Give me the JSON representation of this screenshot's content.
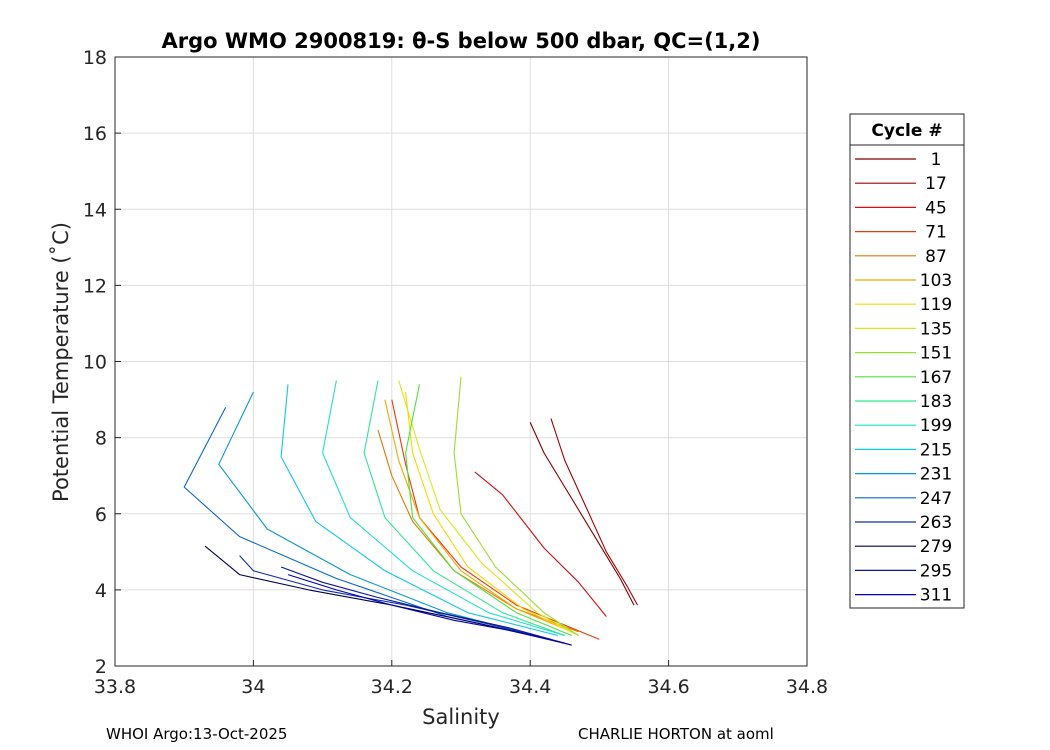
{
  "chart_data": {
    "type": "line",
    "title": "Argo WMO 2900819: θ-S below 500 dbar,  QC=(1,2)",
    "xlabel": "Salinity",
    "ylabel": "Potential Temperature (˚C)",
    "xlim": [
      33.8,
      34.8
    ],
    "ylim": [
      2,
      18
    ],
    "xticks": [
      33.8,
      34.0,
      34.2,
      34.4,
      34.6,
      34.8
    ],
    "xtick_labels": [
      "33.8",
      "34",
      "34.2",
      "34.4",
      "34.6",
      "34.8"
    ],
    "yticks": [
      2,
      4,
      6,
      8,
      10,
      12,
      14,
      16,
      18
    ],
    "ytick_labels": [
      "2",
      "4",
      "6",
      "8",
      "10",
      "12",
      "14",
      "16",
      "18"
    ],
    "grid": true,
    "legend": {
      "title": "Cycle #",
      "placement": "outside-right",
      "entries": [
        {
          "label": "1",
          "color": "#800000"
        },
        {
          "label": "17",
          "color": "#a00000"
        },
        {
          "label": "45",
          "color": "#d01010"
        },
        {
          "label": "71",
          "color": "#e83a10"
        },
        {
          "label": "87",
          "color": "#e07a00"
        },
        {
          "label": "103",
          "color": "#f0a800"
        },
        {
          "label": "119",
          "color": "#f8d800"
        },
        {
          "label": "135",
          "color": "#d8e818"
        },
        {
          "label": "151",
          "color": "#98e030"
        },
        {
          "label": "167",
          "color": "#50e040"
        },
        {
          "label": "183",
          "color": "#30e890"
        },
        {
          "label": "199",
          "color": "#20e0c8"
        },
        {
          "label": "215",
          "color": "#10c8e8"
        },
        {
          "label": "231",
          "color": "#0898c8"
        },
        {
          "label": "247",
          "color": "#0868d0"
        },
        {
          "label": "263",
          "color": "#1030b0"
        },
        {
          "label": "279",
          "color": "#000050"
        },
        {
          "label": "295",
          "color": "#081890"
        },
        {
          "label": "311",
          "color": "#0000b8"
        }
      ]
    },
    "series": [
      {
        "name": "1",
        "color": "#800000",
        "x": [
          34.4,
          34.42,
          34.46,
          34.5,
          34.53,
          34.55
        ],
        "y": [
          8.4,
          7.6,
          6.4,
          5.2,
          4.3,
          3.6
        ]
      },
      {
        "name": "17",
        "color": "#a00000",
        "x": [
          34.43,
          34.45,
          34.48,
          34.51,
          34.54,
          34.555
        ],
        "y": [
          8.5,
          7.4,
          6.2,
          5.0,
          4.1,
          3.6
        ]
      },
      {
        "name": "45",
        "color": "#d01010",
        "x": [
          34.32,
          34.36,
          34.39,
          34.42,
          34.47,
          34.51
        ],
        "y": [
          7.1,
          6.5,
          5.8,
          5.1,
          4.2,
          3.3
        ]
      },
      {
        "name": "71",
        "color": "#e83a10",
        "x": [
          34.2,
          34.22,
          34.24,
          34.3,
          34.38,
          34.5
        ],
        "y": [
          9.0,
          7.3,
          5.9,
          4.6,
          3.6,
          2.7
        ]
      },
      {
        "name": "87",
        "color": "#e07a00",
        "x": [
          34.18,
          34.2,
          34.23,
          34.29,
          34.38,
          34.47
        ],
        "y": [
          8.2,
          7.0,
          5.8,
          4.5,
          3.5,
          2.9
        ]
      },
      {
        "name": "103",
        "color": "#f0a800",
        "x": [
          34.19,
          34.21,
          34.24,
          34.3,
          34.38,
          34.46
        ],
        "y": [
          9.0,
          7.4,
          5.9,
          4.5,
          3.5,
          2.9
        ]
      },
      {
        "name": "119",
        "color": "#f8d800",
        "x": [
          34.22,
          34.23,
          34.26,
          34.31,
          34.39,
          34.47
        ],
        "y": [
          9.2,
          7.6,
          6.0,
          4.6,
          3.5,
          2.8
        ]
      },
      {
        "name": "135",
        "color": "#d8e818",
        "x": [
          34.21,
          34.24,
          34.27,
          34.33,
          34.41,
          34.47
        ],
        "y": [
          9.5,
          7.7,
          6.1,
          4.7,
          3.4,
          2.8
        ]
      },
      {
        "name": "151",
        "color": "#98e030",
        "x": [
          34.3,
          34.29,
          34.3,
          34.35,
          34.42,
          34.47
        ],
        "y": [
          9.6,
          7.6,
          6.0,
          4.6,
          3.4,
          2.8
        ]
      },
      {
        "name": "167",
        "color": "#50e040",
        "x": [
          34.24,
          34.22,
          34.23,
          34.29,
          34.38,
          34.46
        ],
        "y": [
          9.4,
          7.6,
          5.9,
          4.5,
          3.4,
          2.8
        ]
      },
      {
        "name": "183",
        "color": "#30e890",
        "x": [
          34.18,
          34.16,
          34.19,
          34.26,
          34.36,
          34.45
        ],
        "y": [
          9.5,
          7.6,
          5.9,
          4.5,
          3.4,
          2.8
        ]
      },
      {
        "name": "199",
        "color": "#20e0c8",
        "x": [
          34.12,
          34.1,
          34.14,
          34.23,
          34.34,
          34.45
        ],
        "y": [
          9.5,
          7.6,
          5.9,
          4.5,
          3.4,
          2.8
        ]
      },
      {
        "name": "215",
        "color": "#10c8e8",
        "x": [
          34.05,
          34.04,
          34.09,
          34.19,
          34.31,
          34.44
        ],
        "y": [
          9.4,
          7.5,
          5.8,
          4.5,
          3.4,
          2.8
        ]
      },
      {
        "name": "231",
        "color": "#0898c8",
        "x": [
          34.0,
          33.95,
          34.02,
          34.14,
          34.28,
          34.43
        ],
        "y": [
          9.2,
          7.3,
          5.6,
          4.4,
          3.4,
          2.7
        ]
      },
      {
        "name": "247",
        "color": "#0868d0",
        "x": [
          33.96,
          33.9,
          33.98,
          34.12,
          34.28,
          34.43
        ],
        "y": [
          8.8,
          6.7,
          5.4,
          4.3,
          3.3,
          2.7
        ]
      },
      {
        "name": "263",
        "color": "#1030b0",
        "x": [
          33.98,
          34.0,
          34.1,
          34.22,
          34.34,
          34.45
        ],
        "y": [
          4.9,
          4.5,
          4.0,
          3.6,
          3.1,
          2.6
        ]
      },
      {
        "name": "279",
        "color": "#000050",
        "x": [
          33.93,
          33.98,
          34.08,
          34.2,
          34.33,
          34.45
        ],
        "y": [
          5.15,
          4.4,
          4.0,
          3.6,
          3.1,
          2.6
        ]
      },
      {
        "name": "295",
        "color": "#081890",
        "x": [
          34.04,
          34.1,
          34.18,
          34.27,
          34.37,
          34.46
        ],
        "y": [
          4.6,
          4.2,
          3.8,
          3.4,
          3.0,
          2.55
        ]
      },
      {
        "name": "311",
        "color": "#0000b8",
        "x": [
          34.05,
          34.12,
          34.2,
          34.29,
          34.38,
          34.46
        ],
        "y": [
          4.4,
          4.0,
          3.6,
          3.2,
          2.9,
          2.55
        ]
      }
    ]
  },
  "footer": {
    "left": "WHOI Argo:13-Oct-2025",
    "right": "CHARLIE HORTON at aoml"
  }
}
